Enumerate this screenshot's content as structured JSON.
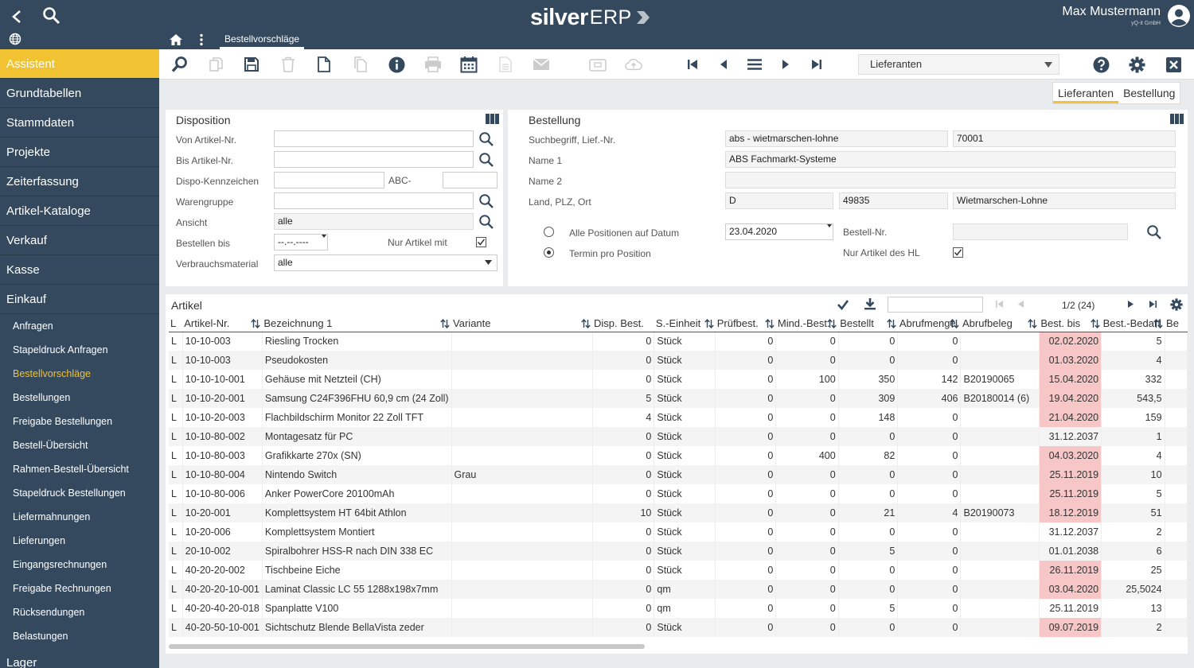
{
  "header": {
    "logo_silver": "silver",
    "logo_erp": "ERP",
    "user_name": "Max Mustermann",
    "user_company": "yQ-it GmbH",
    "active_tab": "Bestellvorschläge"
  },
  "sidebar": {
    "items": [
      {
        "label": "Assistent",
        "type": "main",
        "active": true
      },
      {
        "label": "Grundtabellen",
        "type": "main"
      },
      {
        "label": "Stammdaten",
        "type": "main"
      },
      {
        "label": "Projekte",
        "type": "main"
      },
      {
        "label": "Zeiterfassung",
        "type": "main"
      },
      {
        "label": "Artikel-Kataloge",
        "type": "main"
      },
      {
        "label": "Verkauf",
        "type": "main"
      },
      {
        "label": "Kasse",
        "type": "main"
      },
      {
        "label": "Einkauf",
        "type": "main"
      },
      {
        "label": "Anfragen",
        "type": "sub"
      },
      {
        "label": "Stapeldruck Anfragen",
        "type": "sub"
      },
      {
        "label": "Bestellvorschläge",
        "type": "sub",
        "active": true
      },
      {
        "label": "Bestellungen",
        "type": "sub"
      },
      {
        "label": "Freigabe Bestellungen",
        "type": "sub"
      },
      {
        "label": "Bestell-Übersicht",
        "type": "sub"
      },
      {
        "label": "Rahmen-Bestell-Übersicht",
        "type": "sub"
      },
      {
        "label": "Stapeldruck Bestellungen",
        "type": "sub"
      },
      {
        "label": "Liefermahnungen",
        "type": "sub"
      },
      {
        "label": "Lieferungen",
        "type": "sub"
      },
      {
        "label": "Eingangsrechnungen",
        "type": "sub"
      },
      {
        "label": "Freigabe Rechnungen",
        "type": "sub"
      },
      {
        "label": "Rücksendungen",
        "type": "sub"
      },
      {
        "label": "Belastungen",
        "type": "sub"
      },
      {
        "label": "Lager",
        "type": "main"
      }
    ]
  },
  "toolbar": {
    "select_value": "Lieferanten"
  },
  "view_tabs": [
    "Lieferanten",
    "Bestellung"
  ],
  "disposition": {
    "title": "Disposition",
    "von_artikel_label": "Von Artikel-Nr.",
    "von_artikel_value": "",
    "bis_artikel_label": "Bis Artikel-Nr.",
    "bis_artikel_value": "",
    "dispo_label": "Dispo-Kennzeichen",
    "abc_label": "ABC-",
    "warengruppe_label": "Warengruppe",
    "ansicht_label": "Ansicht",
    "ansicht_value": "alle",
    "bestellen_bis_label": "Bestellen bis",
    "bestellen_bis_value": "--.--.----",
    "nur_artikel_label": "Nur Artikel mit",
    "nur_artikel_checked": true,
    "verbrauch_label": "Verbrauchsmaterial",
    "verbrauch_value": "alle"
  },
  "bestellung": {
    "title": "Bestellung",
    "suchbegriff_label": "Suchbegriff, Lief.-Nr.",
    "suchbegriff_value": "abs - wietmarschen-lohne",
    "lief_nr_value": "70001",
    "name1_label": "Name 1",
    "name1_value": "ABS Fachmarkt-Systeme",
    "name2_label": "Name 2",
    "name2_value": "",
    "ort_label": "Land, PLZ, Ort",
    "land_value": "D",
    "plz_value": "49835",
    "ort_value": "Wietmarschen-Lohne",
    "alle_pos_label": "Alle Positionen auf Datum",
    "datum_value": "23.04.2020",
    "bestell_nr_label": "Bestell-Nr.",
    "bestell_nr_value": "",
    "termin_label": "Termin pro Position",
    "nur_hl_label": "Nur Artikel des HL",
    "nur_hl_checked": true,
    "radio_selected": "termin"
  },
  "artikel": {
    "title": "Artikel",
    "pagination": "1/2 (24)",
    "search_value": "",
    "columns": [
      "L",
      "Artikel-Nr.",
      "Bezeichnung 1",
      "Variante",
      "Disp. Best.",
      "S.-Einheit",
      "Prüfbest.",
      "Mind.-Best.",
      "Bestellt",
      "Abrufmenge",
      "Abrufbeleg",
      "Best. bis",
      "Best.-Bedarf",
      "Be"
    ],
    "rows": [
      [
        "L",
        "10-10-003",
        "Riesling Trocken",
        "",
        "0",
        "Stück",
        "0",
        "0",
        "0",
        "0",
        "",
        "02.02.2020",
        "5",
        true
      ],
      [
        "L",
        "10-10-003",
        "Pseudokosten",
        "",
        "0",
        "Stück",
        "0",
        "0",
        "0",
        "0",
        "",
        "01.03.2020",
        "4",
        true
      ],
      [
        "L",
        "10-10-10-001",
        "Gehäuse mit Netzteil (CH)",
        "",
        "0",
        "Stück",
        "0",
        "100",
        "350",
        "142",
        "B20190065",
        "15.04.2020",
        "332",
        true
      ],
      [
        "L",
        "10-10-20-001",
        "Samsung C24F396FHU 60,9 cm (24 Zoll)",
        "",
        "5",
        "Stück",
        "0",
        "0",
        "309",
        "406",
        "B20180014 (6)",
        "19.04.2020",
        "543,5",
        true
      ],
      [
        "L",
        "10-10-20-003",
        "Flachbildschirm Monitor 22 Zoll TFT",
        "",
        "4",
        "Stück",
        "0",
        "0",
        "148",
        "0",
        "",
        "21.04.2020",
        "159",
        true
      ],
      [
        "L",
        "10-10-80-002",
        "Montagesatz für PC",
        "",
        "0",
        "Stück",
        "0",
        "0",
        "0",
        "0",
        "",
        "31.12.2037",
        "1",
        false
      ],
      [
        "L",
        "10-10-80-003",
        "Grafikkarte 270x (SN)",
        "",
        "0",
        "Stück",
        "0",
        "400",
        "82",
        "0",
        "",
        "04.03.2020",
        "4",
        true
      ],
      [
        "L",
        "10-10-80-004",
        "Nintendo Switch",
        "Grau",
        "0",
        "Stück",
        "0",
        "0",
        "0",
        "0",
        "",
        "25.11.2019",
        "10",
        true
      ],
      [
        "L",
        "10-10-80-006",
        "Anker PowerCore 20100mAh",
        "",
        "0",
        "Stück",
        "0",
        "0",
        "0",
        "0",
        "",
        "25.11.2019",
        "5",
        true
      ],
      [
        "L",
        "10-20-001",
        "Komplettsystem HT 64bit Athlon",
        "",
        "10",
        "Stück",
        "0",
        "0",
        "21",
        "4",
        "B20190073",
        "18.12.2019",
        "51",
        true
      ],
      [
        "L",
        "10-20-006",
        "Komplettsystem Montiert",
        "",
        "0",
        "Stück",
        "0",
        "0",
        "0",
        "0",
        "",
        "31.12.2037",
        "2",
        false
      ],
      [
        "L",
        "20-10-002",
        "Spiralbohrer HSS-R nach DIN 338 EC",
        "",
        "0",
        "Stück",
        "0",
        "0",
        "5",
        "0",
        "",
        "01.01.2038",
        "6",
        false
      ],
      [
        "L",
        "40-20-20-002",
        "Tischbeine Eiche",
        "",
        "0",
        "Stück",
        "0",
        "0",
        "0",
        "0",
        "",
        "26.11.2019",
        "25",
        true
      ],
      [
        "L",
        "40-20-20-10-001",
        "Laminat Classic LC 55 1288x198x7mm",
        "",
        "0",
        "qm",
        "0",
        "0",
        "0",
        "0",
        "",
        "03.04.2020",
        "25,5024",
        true
      ],
      [
        "L",
        "40-20-40-20-018",
        "Spanplatte V100",
        "",
        "0",
        "qm",
        "0",
        "0",
        "5",
        "0",
        "",
        "25.11.2019",
        "13",
        false
      ],
      [
        "L",
        "40-20-50-10-001",
        "Sichtschutz Blende BellaVista zeder",
        "",
        "0",
        "Stück",
        "0",
        "0",
        "0",
        "0",
        "",
        "09.07.2019",
        "2",
        true
      ]
    ]
  },
  "colors": {
    "sidebar_bg": "#34495e",
    "accent": "#f1c232",
    "highlight_cell": "#f7c6c6"
  }
}
